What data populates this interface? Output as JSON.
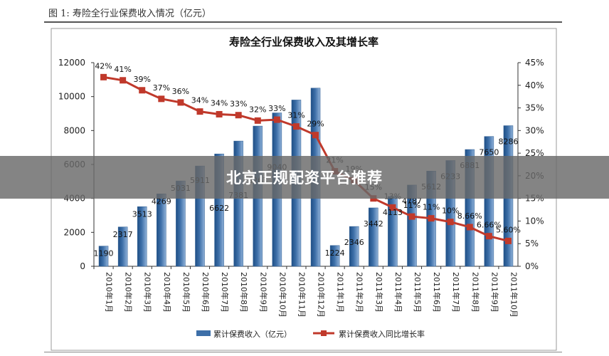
{
  "caption": "图 1: 寿险全行业保费收入情况（亿元）",
  "overlay": {
    "text": "北京正规配资平台推荐"
  },
  "colors": {
    "bar": "#3d6fa8",
    "line": "#c0392b"
  },
  "chart_data": {
    "type": "bar",
    "title": "寿险全行业保费收入及其增长率",
    "categories": [
      "2010年1月",
      "2010年2月",
      "2010年3月",
      "2010年4月",
      "2010年5月",
      "2010年6月",
      "2010年7月",
      "2010年8月",
      "2010年9月",
      "2010年10月",
      "2010年11月",
      "2010年12月",
      "2011年1月",
      "2011年2月",
      "2011年3月",
      "2011年4月",
      "2011年5月",
      "2011年6月",
      "2011年7月",
      "2011年8月",
      "2011年9月",
      "2011年10月"
    ],
    "bar_labels": [
      "1190",
      "2317",
      "3513",
      "4269",
      "5031",
      "5911",
      "6622",
      "7381",
      "8263",
      "9040",
      "",
      "",
      "1224",
      "2346",
      "3442",
      "4113",
      "4787",
      "5612",
      "6233",
      "6881",
      "7650",
      "8286"
    ],
    "pct_labels": [
      "42%",
      "41%",
      "39%",
      "37%",
      "36%",
      "34%",
      "34%",
      "33%",
      "32%",
      "33%",
      "31%",
      "29%",
      "21%",
      "19%",
      "15%",
      "13%",
      "11%",
      "11%",
      "10%",
      "8.66%",
      "6.66%",
      "5.60%"
    ],
    "series": [
      {
        "name": "累计保费收入（亿元）",
        "type": "bar",
        "axis": "left",
        "values": [
          1190,
          2317,
          3513,
          4269,
          5031,
          5911,
          6622,
          7381,
          8263,
          9040,
          9800,
          10500,
          1224,
          2346,
          3442,
          4113,
          4787,
          5612,
          6233,
          6881,
          7650,
          8286
        ]
      },
      {
        "name": "累计保费收入同比增长率",
        "type": "line",
        "axis": "right",
        "values": [
          41.8,
          41.1,
          38.9,
          37.0,
          36.2,
          34.2,
          33.6,
          33.4,
          32.2,
          32.4,
          30.9,
          29.0,
          21.0,
          19.0,
          15.0,
          13.0,
          11.0,
          10.6,
          9.8,
          8.66,
          6.66,
          5.6
        ]
      }
    ],
    "y_left": {
      "ticks": [
        "0",
        "2000",
        "4000",
        "6000",
        "8000",
        "10000",
        "12000"
      ],
      "ylim": [
        0,
        12000
      ]
    },
    "y_right": {
      "ticks": [
        "0%",
        "5%",
        "10%",
        "15%",
        "20%",
        "25%",
        "30%",
        "35%",
        "40%",
        "45%"
      ],
      "ylim": [
        0,
        45
      ]
    },
    "legend_position": "bottom",
    "grid": false
  }
}
